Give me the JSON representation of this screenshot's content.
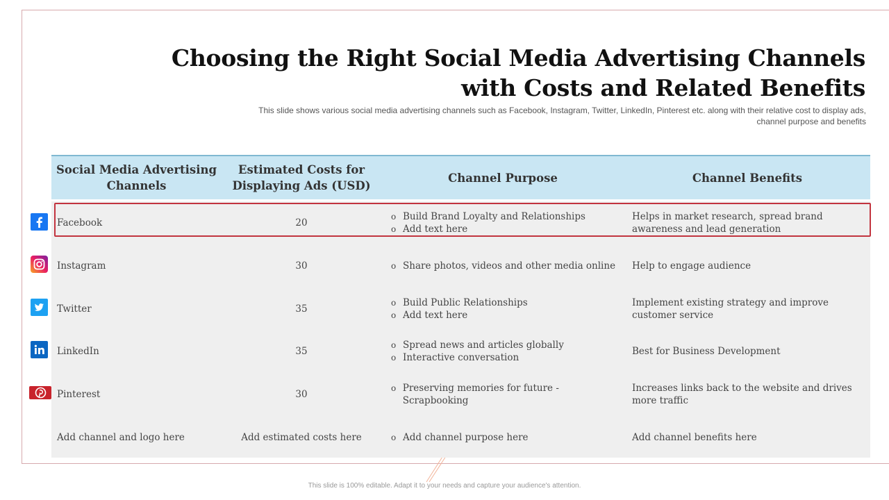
{
  "title": "Choosing the Right Social Media Advertising Channels with Costs and Related Benefits",
  "subtitle": "This slide shows various  social media advertising  channels such as Facebook, Instagram,  Twitter, LinkedIn,  Pinterest etc. along with their relative  cost to display ads, channel purpose and benefits",
  "table": {
    "headers": [
      "Social Media Advertising Channels",
      "Estimated Costs for Displaying Ads (USD)",
      "Channel Purpose",
      "Channel Benefits"
    ],
    "rows": [
      {
        "channel": "Facebook",
        "cost": "20",
        "purpose": [
          "Build Brand Loyalty and Relationships",
          "Add text here"
        ],
        "benefits": "Helps in market research, spread brand awareness and lead generation",
        "icon": "facebook-icon"
      },
      {
        "channel": "Instagram",
        "cost": "30",
        "purpose": [
          "Share photos, videos and other media online"
        ],
        "benefits": "Help to engage  audience",
        "icon": "instagram-icon"
      },
      {
        "channel": "Twitter",
        "cost": "35",
        "purpose": [
          "Build Public Relationships",
          "Add text here"
        ],
        "benefits": "Implement existing strategy and improve customer service",
        "icon": "twitter-icon"
      },
      {
        "channel": "LinkedIn",
        "cost": "35",
        "purpose": [
          "Spread news and articles globally",
          "Interactive conversation"
        ],
        "benefits": "Best for Business  Development",
        "icon": "linkedin-icon"
      },
      {
        "channel": "Pinterest",
        "cost": "30",
        "purpose": [
          "Preserving memories for future - Scrapbooking"
        ],
        "benefits": "Increases links back to the website and drives more traffic",
        "icon": "pinterest-icon"
      },
      {
        "channel": "Add channel and logo here",
        "cost": "Add estimated costs here",
        "purpose": [
          "Add channel purpose here"
        ],
        "benefits": "Add channel benefits here",
        "icon": ""
      }
    ]
  },
  "footer": "This slide is 100% editable. Adapt it to your needs and capture your audience's attention.",
  "colors": {
    "header_bg": "#c9e6f3",
    "body_bg": "#efefef",
    "highlight": "#c2343f",
    "facebook": "#1877f2",
    "twitter": "#1da1f2",
    "linkedin": "#0a66c2",
    "pinterest": "#c8232c"
  }
}
